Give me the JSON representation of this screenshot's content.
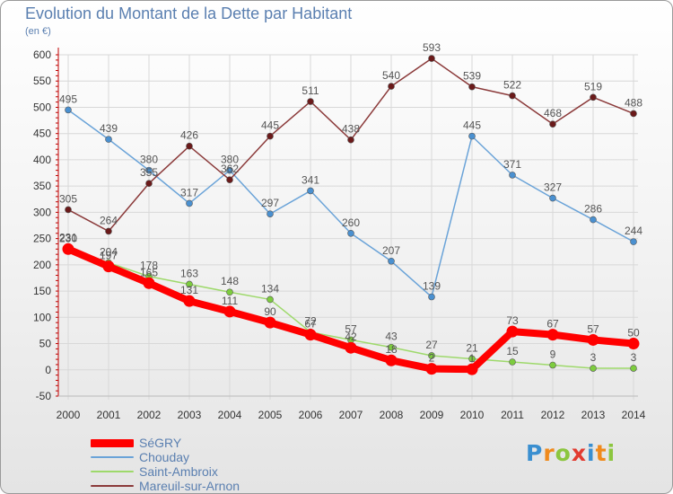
{
  "title": "Evolution du Montant de la Dette par Habitant",
  "unit_label": "(en €)",
  "brand": {
    "letters": [
      "P",
      "r",
      "o",
      "x",
      "i",
      "t",
      "i"
    ],
    "colors": [
      "#3a8fd0",
      "#f08a1c",
      "#8cc63f",
      "#e23a2f",
      "#3a8fd0",
      "#f08a1c",
      "#8cc63f"
    ]
  },
  "chart_data": {
    "type": "line",
    "x": [
      "2000",
      "2001",
      "2002",
      "2003",
      "2004",
      "2005",
      "2006",
      "2007",
      "2008",
      "2009",
      "2010",
      "2011",
      "2012",
      "2013",
      "2014"
    ],
    "yticks": [
      -50,
      0,
      50,
      100,
      150,
      200,
      250,
      300,
      350,
      400,
      450,
      500,
      550,
      600
    ],
    "ylim": [
      -50,
      600
    ],
    "grid": true,
    "legend_position": "bottom-left",
    "series": [
      {
        "name": "SéGRY",
        "color": "#ff0000",
        "marker_color": "#ff0000",
        "label_color": "#555555",
        "thick": true,
        "values": [
          230,
          197,
          165,
          131,
          111,
          90,
          67,
          42,
          18,
          2,
          1,
          73,
          67,
          57,
          50
        ]
      },
      {
        "name": "Chouday",
        "color": "#6aa3d8",
        "marker_color": "#4a90d0",
        "label_color": "#555555",
        "thick": false,
        "values": [
          495,
          439,
          380,
          317,
          380,
          297,
          341,
          260,
          207,
          139,
          445,
          371,
          327,
          286,
          244
        ]
      },
      {
        "name": "Saint-Ambroix",
        "color": "#9ed96b",
        "marker_color": "#7dcc3e",
        "label_color": "#555555",
        "thick": false,
        "values": [
          231,
          204,
          178,
          163,
          148,
          134,
          72,
          57,
          43,
          27,
          21,
          15,
          9,
          3,
          3
        ]
      },
      {
        "name": "Mareuil-sur-Arnon",
        "color": "#8b3a3a",
        "marker_color": "#6b1a1a",
        "label_color": "#555555",
        "thick": false,
        "values": [
          305,
          264,
          355,
          426,
          362,
          445,
          511,
          438,
          540,
          593,
          539,
          522,
          468,
          519,
          488
        ]
      }
    ]
  }
}
